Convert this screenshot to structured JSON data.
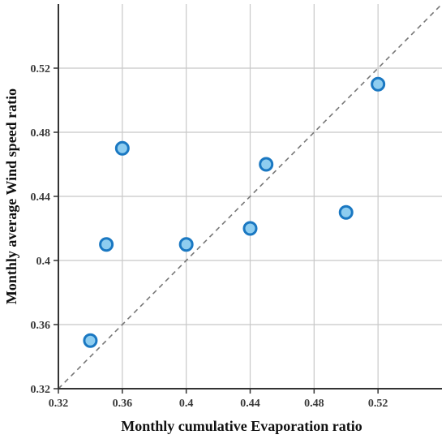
{
  "chart_data": {
    "type": "scatter",
    "xlabel": "Monthly cumulative Evaporation ratio",
    "ylabel": "Monthly average Wind speed ratio",
    "xlim": [
      0.32,
      0.56
    ],
    "ylim": [
      0.32,
      0.56
    ],
    "x_ticks": [
      0.32,
      0.36,
      0.4,
      0.44,
      0.48,
      0.52
    ],
    "x_tick_labels": [
      "0.32",
      "0.36",
      "0.4",
      "0.44",
      "0.48",
      "0.52"
    ],
    "y_ticks": [
      0.32,
      0.36,
      0.4,
      0.44,
      0.48,
      0.52
    ],
    "y_tick_labels": [
      "0.32",
      "0.36",
      "0.4",
      "0.44",
      "0.48",
      "0.52"
    ],
    "grid": true,
    "reference_line": "y = x (dashed)",
    "points": [
      {
        "x": 0.34,
        "y": 0.35
      },
      {
        "x": 0.35,
        "y": 0.41
      },
      {
        "x": 0.36,
        "y": 0.47
      },
      {
        "x": 0.4,
        "y": 0.41
      },
      {
        "x": 0.44,
        "y": 0.42
      },
      {
        "x": 0.45,
        "y": 0.46
      },
      {
        "x": 0.5,
        "y": 0.43
      },
      {
        "x": 0.52,
        "y": 0.51
      }
    ],
    "colors": {
      "marker_fill": "#8ecdf0",
      "marker_edge": "#1a78c2",
      "grid": "#c8c8c8",
      "axis": "#333333",
      "reference_line": "#777777"
    }
  }
}
